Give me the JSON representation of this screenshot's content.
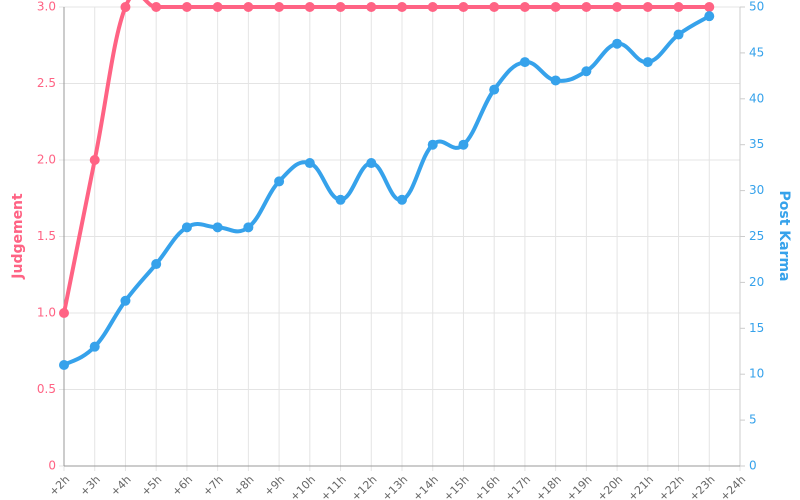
{
  "chart_data": {
    "type": "line",
    "categories": [
      "+2h",
      "+3h",
      "+4h",
      "+5h",
      "+6h",
      "+7h",
      "+8h",
      "+9h",
      "+10h",
      "+11h",
      "+12h",
      "+13h",
      "+14h",
      "+15h",
      "+16h",
      "+17h",
      "+18h",
      "+19h",
      "+20h",
      "+21h",
      "+22h",
      "+23h",
      "+24h"
    ],
    "series": [
      {
        "name": "Judgement",
        "color": "#ff6384",
        "axis": "y",
        "values": [
          1,
          2,
          3,
          3,
          3,
          3,
          3,
          3,
          3,
          3,
          3,
          3,
          3,
          3,
          3,
          3,
          3,
          3,
          3,
          3,
          3,
          3,
          null
        ]
      },
      {
        "name": "Post Karma",
        "color": "#36a2eb",
        "axis": "y2",
        "values": [
          11,
          13,
          18,
          22,
          26,
          26,
          26,
          31,
          33,
          29,
          33,
          29,
          35,
          35,
          41,
          44,
          42,
          43,
          46,
          44,
          47,
          49,
          null
        ]
      }
    ],
    "ylabel": "Judgement",
    "y2label": "Post Karma",
    "ylim": [
      0,
      3
    ],
    "yticks": [
      0,
      0.5,
      {
        "value": 1,
        "label": "1.0"
      },
      1.5,
      {
        "value": 2,
        "label": "2.0"
      },
      2.5,
      {
        "value": 3,
        "label": "3.0"
      }
    ],
    "y2lim": [
      0,
      50
    ],
    "y2ticks": [
      0,
      5,
      10,
      15,
      20,
      25,
      30,
      35,
      40,
      45,
      50
    ],
    "grid": true
  }
}
